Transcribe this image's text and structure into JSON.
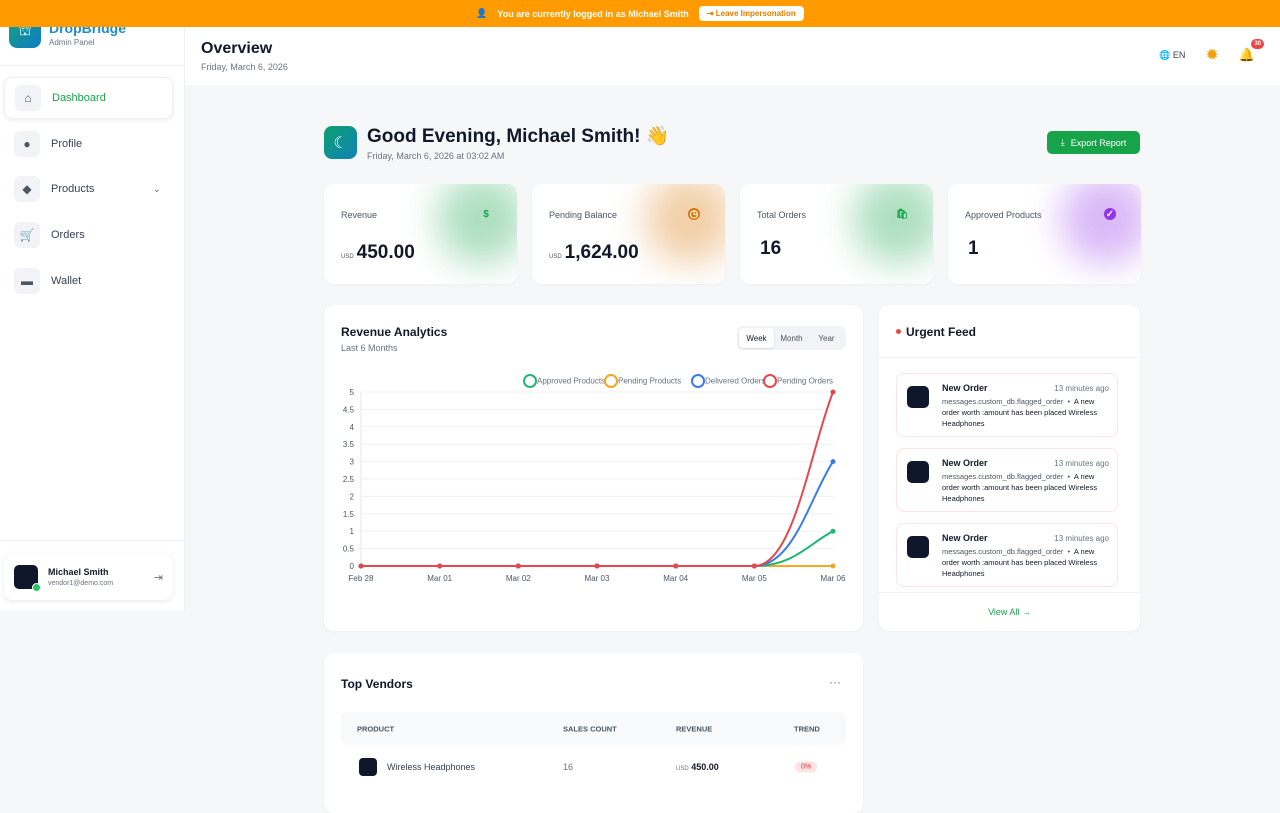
{
  "banner": {
    "text": "You are currently logged in as Michael Smith",
    "leave": "Leave Impersonation"
  },
  "sidebar": {
    "brand": "DropBridge",
    "sub": "Admin Panel",
    "items": [
      {
        "label": "Dashboard",
        "icon": "home-icon"
      },
      {
        "label": "Profile",
        "icon": "user-icon"
      },
      {
        "label": "Products",
        "icon": "box-icon"
      },
      {
        "label": "Orders",
        "icon": "cart-icon"
      },
      {
        "label": "Wallet",
        "icon": "wallet-icon"
      }
    ],
    "user": {
      "name": "Michael Smith",
      "email": "vendor1@demo.com"
    }
  },
  "header": {
    "title": "Overview",
    "date": "Friday, March 6, 2026",
    "lang": "EN",
    "notifications": "30"
  },
  "greeting": {
    "title": "Good Evening, Michael Smith! 👋",
    "sub": "Friday, March 6, 2026 at 03:02 AM",
    "export": "Export Report"
  },
  "stats": [
    {
      "label": "Revenue",
      "currency": "USD",
      "value": "450.00",
      "color": "#16a34a"
    },
    {
      "label": "Pending Balance",
      "currency": "USD",
      "value": "1,624.00",
      "color": "#d97706"
    },
    {
      "label": "Total Orders",
      "currency": "",
      "value": "16",
      "color": "#16a34a"
    },
    {
      "label": "Approved Products",
      "currency": "",
      "value": "1",
      "color": "#9333ea"
    }
  ],
  "analytics": {
    "title": "Revenue Analytics",
    "sub": "Last 6 Months",
    "tabs": [
      "Week",
      "Month",
      "Year"
    ],
    "active_tab": "Week"
  },
  "chart_data": {
    "type": "line",
    "x": [
      "Feb 28",
      "Mar 01",
      "Mar 02",
      "Mar 03",
      "Mar 04",
      "Mar 05",
      "Mar 06"
    ],
    "ylim": [
      0,
      5
    ],
    "yticks": [
      "0",
      "0.5",
      "1",
      "1.5",
      "2",
      "2.5",
      "3",
      "3.5",
      "4",
      "4.5",
      "5"
    ],
    "legend": "top-right",
    "grid": true,
    "series": [
      {
        "name": "Approved Products",
        "color": "#22b573",
        "values": [
          0,
          0,
          0,
          0,
          0,
          0,
          1
        ]
      },
      {
        "name": "Pending Products",
        "color": "#f5a623",
        "values": [
          0,
          0,
          0,
          0,
          0,
          0,
          0
        ]
      },
      {
        "name": "Delivered Orders",
        "color": "#3b7be8",
        "values": [
          0,
          0,
          0,
          0,
          0,
          0,
          3
        ]
      },
      {
        "name": "Pending Orders",
        "color": "#e5484d",
        "values": [
          0,
          0,
          0,
          0,
          0,
          0,
          5
        ]
      }
    ]
  },
  "feed": {
    "title": "Urgent Feed",
    "view_all": "View All →",
    "items": [
      {
        "title": "New Order",
        "time": "13 minutes ago",
        "key": "messages.custom_db.flagged_order",
        "msg": "A new order worth :amount has been placed Wireless Headphones"
      },
      {
        "title": "New Order",
        "time": "13 minutes ago",
        "key": "messages.custom_db.flagged_order",
        "msg": "A new order worth :amount has been placed Wireless Headphones"
      },
      {
        "title": "New Order",
        "time": "13 minutes ago",
        "key": "messages.custom_db.flagged_order",
        "msg": "A new order worth :amount has been placed Wireless Headphones"
      }
    ]
  },
  "vendors": {
    "title": "Top Vendors",
    "columns": [
      "PRODUCT",
      "SALES COUNT",
      "REVENUE",
      "TREND"
    ],
    "rows": [
      {
        "product": "Wireless Headphones",
        "sales": "16",
        "currency": "USD",
        "revenue": "450.00",
        "trend": "0%"
      }
    ]
  }
}
